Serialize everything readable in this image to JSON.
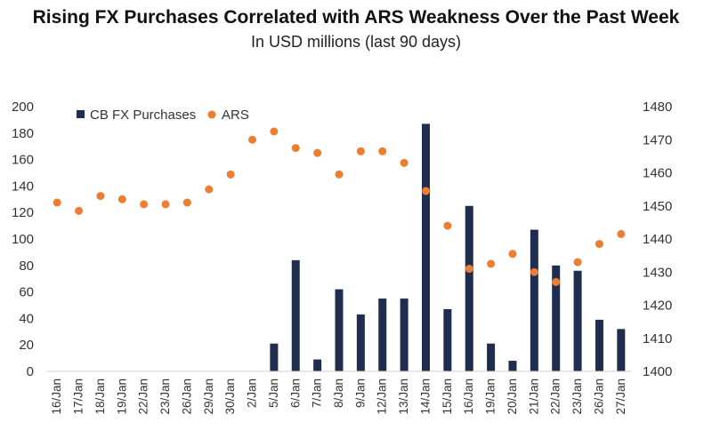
{
  "chart_data": {
    "type": "bar+scatter",
    "title": "Rising FX Purchases Correlated with ARS Weakness Over the Past Week",
    "subtitle": "In USD millions (last 90 days)",
    "categories": [
      "16/Jan",
      "17/Jan",
      "18/Jan",
      "19/Jan",
      "22/Jan",
      "23/Jan",
      "26/Jan",
      "29/Jan",
      "30/Jan",
      "2/Jan",
      "5/Jan",
      "6/Jan",
      "7/Jan",
      "8/Jan",
      "9/Jan",
      "12/Jan",
      "13/Jan",
      "14/Jan",
      "15/Jan",
      "16/Jan",
      "19/Jan",
      "20/Jan",
      "21/Jan",
      "22/Jan",
      "23/Jan",
      "26/Jan",
      "27/Jan"
    ],
    "series": [
      {
        "name": "CB FX Purchases",
        "type": "bar",
        "axis": "left",
        "color": "#1f2d4e",
        "values": [
          0,
          0,
          0,
          0,
          0,
          0,
          0,
          0,
          0,
          0,
          21,
          84,
          9,
          62,
          43,
          55,
          55,
          187,
          47,
          125,
          21,
          8,
          107,
          80,
          76,
          39,
          32
        ]
      },
      {
        "name": "ARS",
        "type": "scatter",
        "axis": "right",
        "color": "#ed7d31",
        "values": [
          1451,
          1448.5,
          1453,
          1452,
          1450.5,
          1450.5,
          1451,
          1455,
          1459.5,
          1470,
          1472.5,
          1467.5,
          1466,
          1459.5,
          1466.5,
          1466.5,
          1463,
          1454.5,
          1444,
          1431,
          1432.5,
          1435.5,
          1430,
          1427,
          1433,
          1438.5,
          1441.5
        ]
      }
    ],
    "yleft": {
      "lim": [
        0,
        200
      ],
      "ticks": [
        0,
        20,
        40,
        60,
        80,
        100,
        120,
        140,
        160,
        180,
        200
      ]
    },
    "yright": {
      "lim": [
        1400,
        1480
      ],
      "ticks": [
        1400,
        1410,
        1420,
        1430,
        1440,
        1450,
        1460,
        1470,
        1480
      ]
    },
    "legend": {
      "placement": "top-left",
      "entries": [
        "CB FX Purchases",
        "ARS"
      ]
    },
    "grid": false
  }
}
